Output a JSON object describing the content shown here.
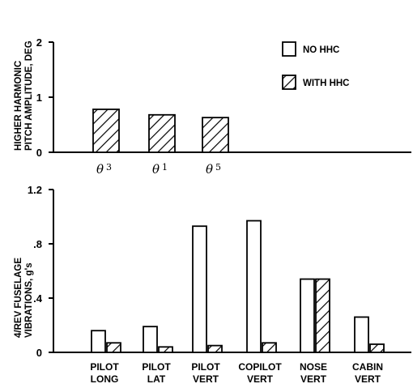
{
  "chart_data": [
    {
      "type": "bar",
      "ylabel_lines": [
        "HIGHER HARMONIC",
        "PITCH AMPLITUDE, DEG"
      ],
      "ylim": [
        0,
        2
      ],
      "yticks": [
        "0",
        "1",
        "2"
      ],
      "categories": [
        {
          "symbol": "θ",
          "sub": "3"
        },
        {
          "symbol": "θ",
          "sub": "1"
        },
        {
          "symbol": "θ",
          "sub": "5"
        }
      ],
      "series": [
        {
          "name": "WITH HHC",
          "values": [
            0.78,
            0.68,
            0.63
          ]
        }
      ]
    },
    {
      "type": "bar",
      "ylabel_lines": [
        "4/REV FUSELAGE",
        "VIBRATIONS, g's"
      ],
      "ylim": [
        0,
        1.2
      ],
      "yticks": [
        "0",
        ".4",
        ".8",
        "1.2"
      ],
      "categories": [
        [
          "PILOT",
          "LONG"
        ],
        [
          "PILOT",
          "LAT"
        ],
        [
          "PILOT",
          "VERT"
        ],
        [
          "COPILOT",
          "VERT"
        ],
        [
          "NOSE",
          "VERT"
        ],
        [
          "CABIN",
          "VERT"
        ]
      ],
      "series": [
        {
          "name": "NO HHC",
          "values": [
            0.16,
            0.19,
            0.93,
            0.97,
            0.54,
            0.26
          ]
        },
        {
          "name": "WITH HHC",
          "values": [
            0.07,
            0.04,
            0.05,
            0.07,
            0.54,
            0.06
          ]
        }
      ]
    }
  ],
  "legend": [
    {
      "label": "NO HHC",
      "pattern": "plain"
    },
    {
      "label": "WITH HHC",
      "pattern": "hatch"
    }
  ]
}
